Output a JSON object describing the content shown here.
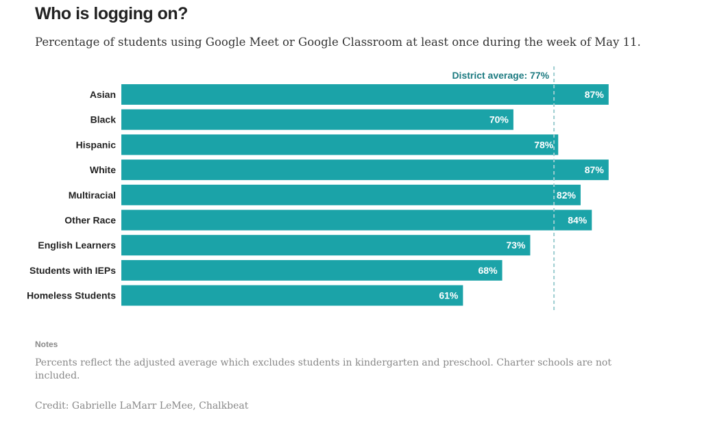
{
  "title": "Who is logging on?",
  "subtitle": "Percentage of students using Google Meet or Google Classroom at least once during the week of May 11.",
  "notes_heading": "Notes",
  "notes": "Percents reflect the adjusted average which excludes students in kindergarten and preschool. Charter schools are not included.",
  "credit": "Credit: Gabrielle LaMarr LeMee, Chalkbeat",
  "chart_data": {
    "type": "bar",
    "orientation": "horizontal",
    "categories": [
      "Asian",
      "Black",
      "Hispanic",
      "White",
      "Multiracial",
      "Other Race",
      "English Learners",
      "Students with IEPs",
      "Homeless Students"
    ],
    "values": [
      87,
      70,
      78,
      87,
      82,
      84,
      73,
      68,
      61
    ],
    "value_labels": [
      "87%",
      "70%",
      "78%",
      "87%",
      "82%",
      "84%",
      "73%",
      "68%",
      "61%"
    ],
    "unit": "%",
    "xlim": [
      0,
      100
    ],
    "grid": false,
    "reference_line": {
      "value": 77,
      "label": "District average: 77%"
    },
    "colors": {
      "bar": "#1ba3a8",
      "reference": "#9ccdd0",
      "reference_label": "#1c7a80"
    }
  }
}
